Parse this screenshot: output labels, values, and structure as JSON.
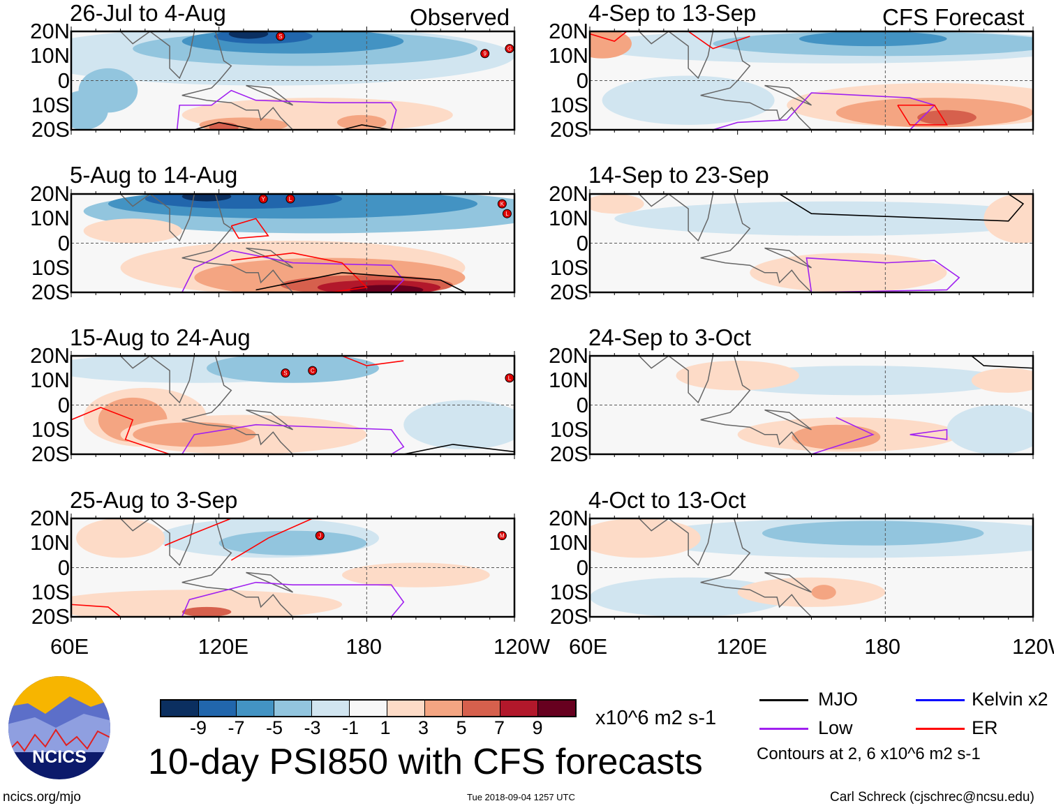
{
  "columns": {
    "left_label": "Observed",
    "right_label": "CFS Forecast"
  },
  "panels": [
    {
      "title": "26-Jul to 4-Aug",
      "storms": [
        "S",
        "9",
        "G"
      ]
    },
    {
      "title": "5-Aug to 14-Aug",
      "storms": [
        "Y",
        "L",
        "K",
        "L"
      ]
    },
    {
      "title": "15-Aug to 24-Aug",
      "storms": [
        "S",
        "C",
        "L"
      ]
    },
    {
      "title": "25-Aug to 3-Sep",
      "storms": [
        "J",
        "M"
      ]
    },
    {
      "title": "4-Sep to 13-Sep",
      "storms": []
    },
    {
      "title": "14-Sep to 23-Sep",
      "storms": []
    },
    {
      "title": "24-Sep to 3-Oct",
      "storms": []
    },
    {
      "title": "4-Oct to 13-Oct",
      "storms": []
    }
  ],
  "lat_labels": [
    "20N",
    "10N",
    "0",
    "10S",
    "20S"
  ],
  "lon_labels": [
    "60E",
    "120E",
    "180",
    "120W"
  ],
  "colorbar": {
    "colors": [
      "#0b2f60",
      "#2166ac",
      "#4393c3",
      "#92c5de",
      "#d1e5f0",
      "#f7f7f7",
      "#fddbc7",
      "#f4a582",
      "#d6604d",
      "#b2182b",
      "#67001f"
    ],
    "ticks": [
      "-9",
      "-7",
      "-5",
      "-3",
      "-1",
      "1",
      "3",
      "5",
      "7",
      "9"
    ],
    "units": "x10^6 m2 s-1"
  },
  "title": "10-day PSI850 with CFS forecasts",
  "legend": {
    "mjo": "MJO",
    "kelvin": "Kelvin x2",
    "low": "Low",
    "er": "ER",
    "note": "Contours at 2, 6 x10^6 m2 s-1",
    "colors": {
      "mjo": "#000000",
      "kelvin": "#0000ff",
      "low": "#a020f0",
      "er": "#ff0000"
    }
  },
  "footer": {
    "url": "ncics.org/mjo",
    "timestamp": "Tue 2018-09-04 1257 UTC",
    "author": "Carl Schreck (cjschrec@ncsu.edu)"
  },
  "logo": {
    "text": "NCICS"
  }
}
